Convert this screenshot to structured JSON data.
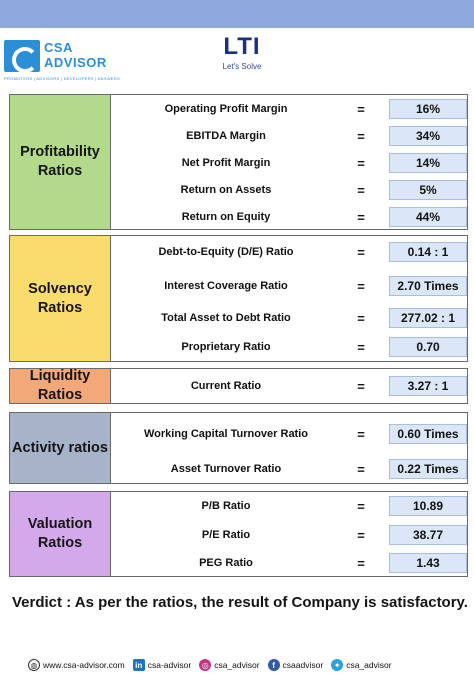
{
  "header": {
    "csa_name_line1": "CSA",
    "csa_name_line2": "ADVISOR",
    "csa_tagline": "PROMOTERS | ADVISORS | DEVELOPERS | ANSWERS",
    "lti_mark": "LTI",
    "lti_tagline": "Let's Solve"
  },
  "sections": [
    {
      "name": "Profitability Ratios",
      "color": "#b3d98b",
      "rows": [
        {
          "label": "Operating Profit Margin",
          "eq": "=",
          "value": "16%"
        },
        {
          "label": "EBITDA Margin",
          "eq": "=",
          "value": "34%"
        },
        {
          "label": "Net Profit Margin",
          "eq": "=",
          "value": "14%"
        },
        {
          "label": "Return on Assets",
          "eq": "=",
          "value": "5%"
        },
        {
          "label": "Return on Equity",
          "eq": "=",
          "value": "44%"
        }
      ]
    },
    {
      "name": "Solvency Ratios",
      "color": "#fadc6e",
      "rows": [
        {
          "label": "Debt-to-Equity (D/E) Ratio",
          "eq": "=",
          "value": "0.14 : 1"
        },
        {
          "label": "Interest Coverage Ratio",
          "eq": "=",
          "value": "2.70 Times"
        },
        {
          "label": "Total Asset to Debt Ratio",
          "eq": "=",
          "value": "277.02 : 1"
        },
        {
          "label": "Proprietary Ratio",
          "eq": "=",
          "value": "0.70"
        }
      ]
    },
    {
      "name": "Liquidity Ratios",
      "color": "#f3a87a",
      "rows": [
        {
          "label": "Current Ratio",
          "eq": "=",
          "value": "3.27 : 1"
        }
      ]
    },
    {
      "name": "Activity ratios",
      "color": "#a6b3c8",
      "rows": [
        {
          "label": "Working Capital Turnover Ratio",
          "eq": "=",
          "value": "0.60 Times"
        },
        {
          "label": "Asset Turnover Ratio",
          "eq": "=",
          "value": "0.22 Times"
        }
      ]
    },
    {
      "name": "Valuation Ratios",
      "color": "#d4a9ec",
      "rows": [
        {
          "label": "P/B Ratio",
          "eq": "=",
          "value": "10.89"
        },
        {
          "label": "P/E Ratio",
          "eq": "=",
          "value": "38.77"
        },
        {
          "label": "PEG Ratio",
          "eq": "=",
          "value": "1.43"
        }
      ]
    }
  ],
  "verdict": "Verdict : As per the ratios, the result of Company is satisfactory.",
  "footer": {
    "website": "www.csa-advisor.com",
    "linkedin": "csa-advisor",
    "instagram": "csa_advisor",
    "facebook": "csaadvisor",
    "twitter": "csa_advisor"
  }
}
